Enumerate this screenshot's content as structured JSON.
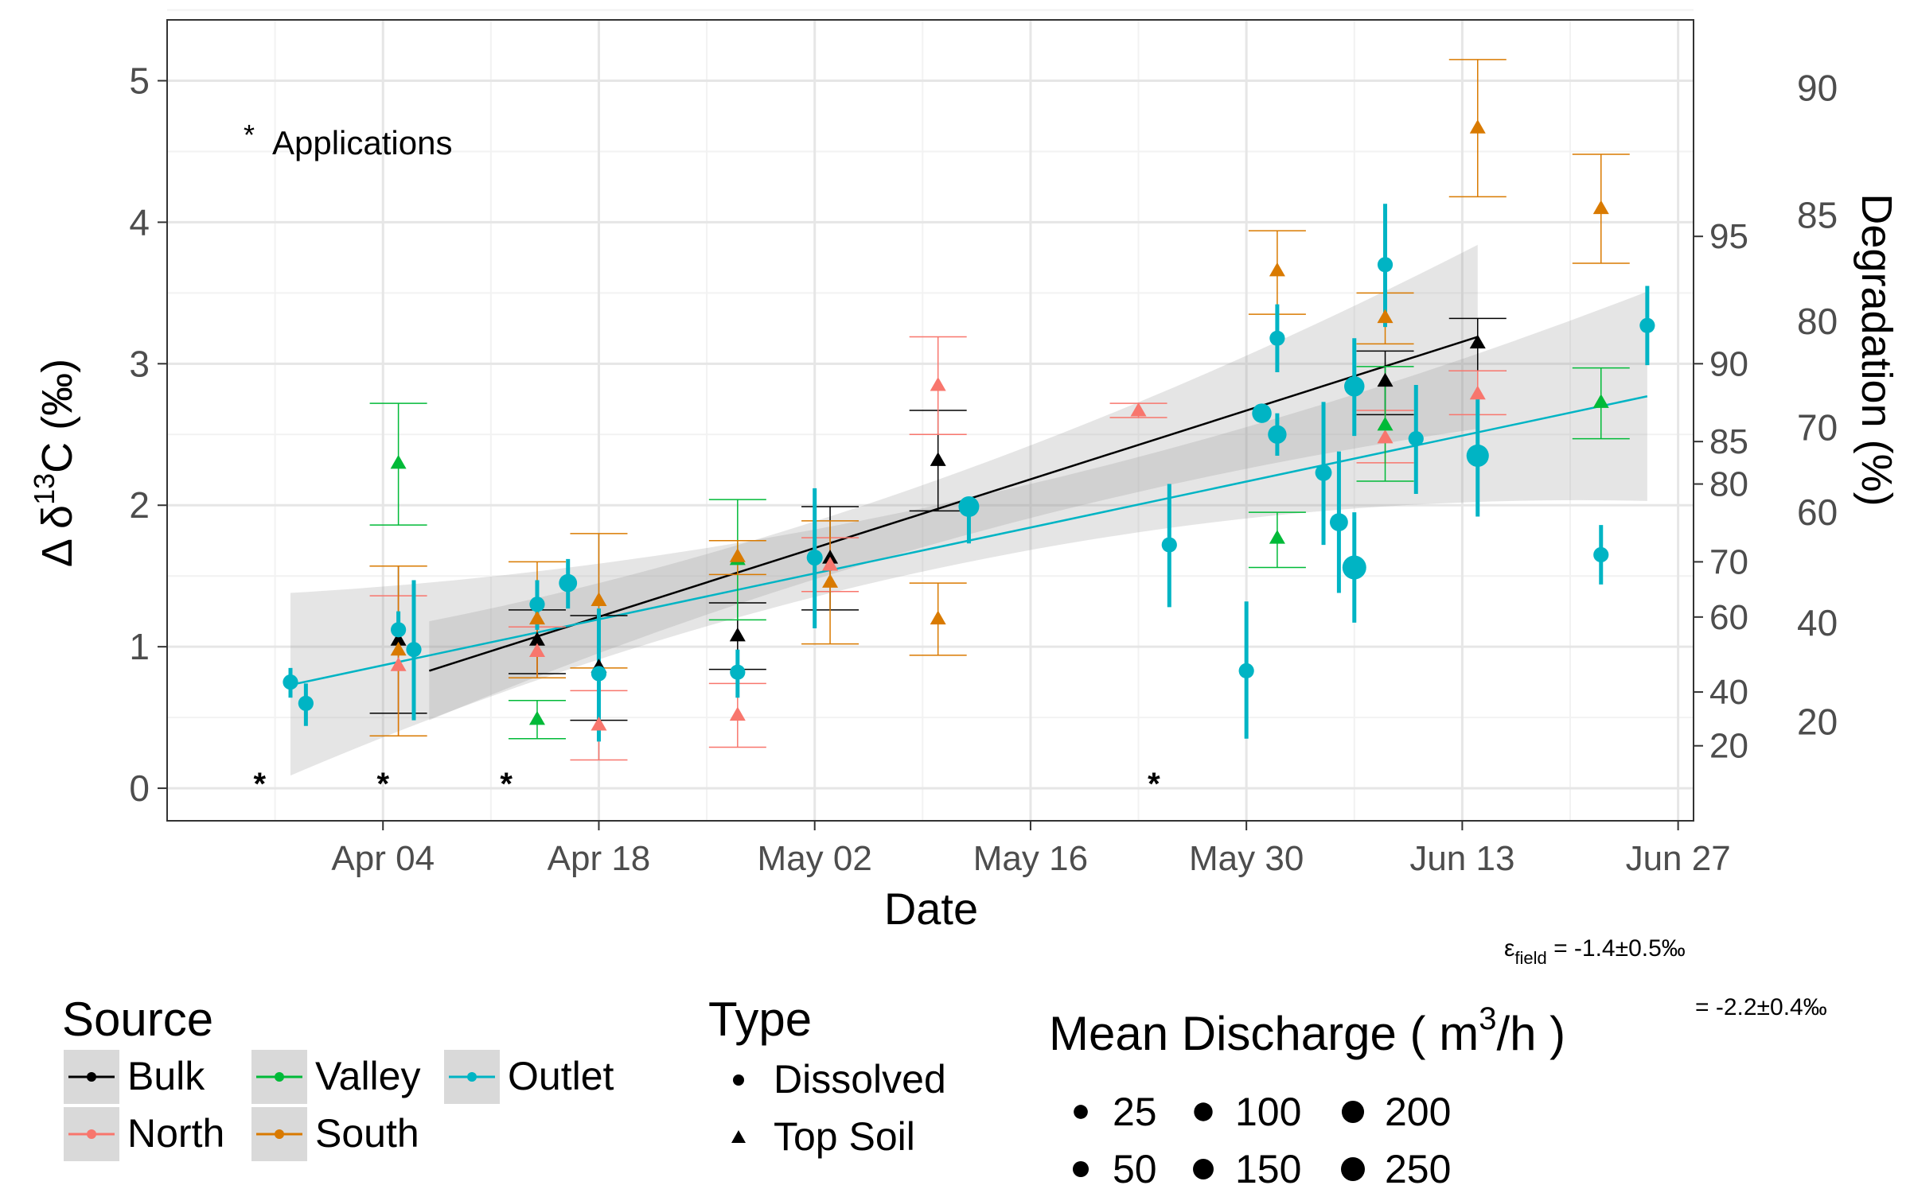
{
  "chart_data": {
    "type": "scatter",
    "xlabel": "Date",
    "ylabel_left_main": "Δ δ",
    "ylabel_left_sup": "13",
    "ylabel_left_end": "C (‰)",
    "ylabel_right": "Degradation (%)",
    "ylim": [
      -0.23,
      5.43
    ],
    "xlim": [
      "2021-03-21",
      "2021-06-28"
    ],
    "grid": true,
    "legend_position": "bottom",
    "x_ticks": [
      {
        "date": "2021-04-04",
        "label": "Apr 04"
      },
      {
        "date": "2021-04-18",
        "label": "Apr 18"
      },
      {
        "date": "2021-05-02",
        "label": "May 02"
      },
      {
        "date": "2021-05-16",
        "label": "May 16"
      },
      {
        "date": "2021-05-30",
        "label": "May 30"
      },
      {
        "date": "2021-06-13",
        "label": "Jun 13"
      },
      {
        "date": "2021-06-27",
        "label": "Jun 27"
      }
    ],
    "y_ticks": [
      0,
      1,
      2,
      3,
      4,
      5
    ],
    "right_axis_inner": [
      {
        "y": 0.3,
        "label": "20"
      },
      {
        "y": 0.68,
        "label": "40"
      },
      {
        "y": 1.21,
        "label": "60"
      },
      {
        "y": 1.6,
        "label": "70"
      },
      {
        "y": 2.15,
        "label": "80"
      },
      {
        "y": 2.45,
        "label": "85"
      },
      {
        "y": 3.0,
        "label": "90"
      },
      {
        "y": 3.9,
        "label": "95"
      }
    ],
    "right_axis_outer": [
      {
        "y": 0.47,
        "label": "20"
      },
      {
        "y": 1.17,
        "label": "40"
      },
      {
        "y": 1.95,
        "label": "60"
      },
      {
        "y": 2.55,
        "label": "70"
      },
      {
        "y": 3.3,
        "label": "80"
      },
      {
        "y": 4.05,
        "label": "85"
      },
      {
        "y": 4.95,
        "label": "90"
      }
    ],
    "annotation": "Applications",
    "applications": [
      "2021-03-27",
      "2021-04-04",
      "2021-04-12",
      "2021-05-24"
    ],
    "series": [
      {
        "name": "Bulk",
        "color": "#000000",
        "points": [
          {
            "x": "2021-04-05",
            "y": 1.05,
            "lo": 0.53,
            "hi": 1.57,
            "type": "Top Soil"
          },
          {
            "x": "2021-04-14",
            "y": 1.05,
            "lo": 0.81,
            "hi": 1.26,
            "type": "Top Soil"
          },
          {
            "x": "2021-04-18",
            "y": 0.86,
            "lo": 0.48,
            "hi": 1.22,
            "type": "Top Soil"
          },
          {
            "x": "2021-04-27",
            "y": 1.08,
            "lo": 0.84,
            "hi": 1.31,
            "type": "Top Soil"
          },
          {
            "x": "2021-05-03",
            "y": 1.63,
            "lo": 1.26,
            "hi": 1.99,
            "type": "Top Soil"
          },
          {
            "x": "2021-05-10",
            "y": 2.32,
            "lo": 1.96,
            "hi": 2.67,
            "type": "Top Soil"
          },
          {
            "x": "2021-06-08",
            "y": 2.88,
            "lo": 2.64,
            "hi": 3.09,
            "type": "Top Soil"
          },
          {
            "x": "2021-06-14",
            "y": 3.15,
            "lo": 2.95,
            "hi": 3.32,
            "type": "Top Soil"
          }
        ]
      },
      {
        "name": "North",
        "color": "#F8766D",
        "points": [
          {
            "x": "2021-04-05",
            "y": 0.87,
            "lo": 0.37,
            "hi": 1.36,
            "type": "Top Soil"
          },
          {
            "x": "2021-04-14",
            "y": 0.97,
            "lo": 0.78,
            "hi": 1.14,
            "type": "Top Soil"
          },
          {
            "x": "2021-04-18",
            "y": 0.45,
            "lo": 0.2,
            "hi": 0.69,
            "type": "Top Soil"
          },
          {
            "x": "2021-04-27",
            "y": 0.52,
            "lo": 0.29,
            "hi": 0.74,
            "type": "Top Soil"
          },
          {
            "x": "2021-05-03",
            "y": 1.58,
            "lo": 1.39,
            "hi": 1.77,
            "type": "Top Soil"
          },
          {
            "x": "2021-05-10",
            "y": 2.85,
            "lo": 2.5,
            "hi": 3.19,
            "type": "Top Soil"
          },
          {
            "x": "2021-05-23",
            "y": 2.67,
            "lo": 2.62,
            "hi": 2.72,
            "type": "Top Soil"
          },
          {
            "x": "2021-06-08",
            "y": 2.48,
            "lo": 2.3,
            "hi": 2.67,
            "type": "Top Soil"
          },
          {
            "x": "2021-06-14",
            "y": 2.79,
            "lo": 2.64,
            "hi": 2.95,
            "type": "Top Soil"
          }
        ]
      },
      {
        "name": "Valley",
        "color": "#00BA38",
        "points": [
          {
            "x": "2021-04-05",
            "y": 2.3,
            "lo": 1.86,
            "hi": 2.72,
            "type": "Top Soil"
          },
          {
            "x": "2021-04-14",
            "y": 0.49,
            "lo": 0.35,
            "hi": 0.62,
            "type": "Top Soil"
          },
          {
            "x": "2021-04-27",
            "y": 1.62,
            "lo": 1.19,
            "hi": 2.04,
            "type": "Top Soil"
          },
          {
            "x": "2021-06-01",
            "y": 1.77,
            "lo": 1.56,
            "hi": 1.95,
            "type": "Top Soil"
          },
          {
            "x": "2021-06-08",
            "y": 2.57,
            "lo": 2.17,
            "hi": 2.98,
            "type": "Top Soil"
          },
          {
            "x": "2021-06-22",
            "y": 2.73,
            "lo": 2.47,
            "hi": 2.97,
            "type": "Top Soil"
          }
        ]
      },
      {
        "name": "South",
        "color": "#D97A00",
        "points": [
          {
            "x": "2021-04-05",
            "y": 0.98,
            "lo": 0.37,
            "hi": 1.57,
            "type": "Top Soil"
          },
          {
            "x": "2021-04-14",
            "y": 1.2,
            "lo": 0.78,
            "hi": 1.6,
            "type": "Top Soil"
          },
          {
            "x": "2021-04-18",
            "y": 1.33,
            "lo": 0.85,
            "hi": 1.8,
            "type": "Top Soil"
          },
          {
            "x": "2021-04-27",
            "y": 1.64,
            "lo": 1.51,
            "hi": 1.75,
            "type": "Top Soil"
          },
          {
            "x": "2021-05-03",
            "y": 1.46,
            "lo": 1.02,
            "hi": 1.89,
            "type": "Top Soil"
          },
          {
            "x": "2021-05-10",
            "y": 1.2,
            "lo": 0.94,
            "hi": 1.45,
            "type": "Top Soil"
          },
          {
            "x": "2021-06-01",
            "y": 3.66,
            "lo": 3.35,
            "hi": 3.94,
            "type": "Top Soil"
          },
          {
            "x": "2021-06-08",
            "y": 3.33,
            "lo": 3.14,
            "hi": 3.5,
            "type": "Top Soil"
          },
          {
            "x": "2021-06-14",
            "y": 4.67,
            "lo": 4.18,
            "hi": 5.15,
            "type": "Top Soil"
          },
          {
            "x": "2021-06-22",
            "y": 4.1,
            "lo": 3.71,
            "hi": 4.48,
            "type": "Top Soil"
          }
        ]
      },
      {
        "name": "Outlet",
        "color": "#00B4C4",
        "points": [
          {
            "x": "2021-03-29",
            "y": 0.75,
            "lo": 0.64,
            "hi": 0.85,
            "type": "Dissolved",
            "discharge": 40
          },
          {
            "x": "2021-03-30",
            "y": 0.6,
            "lo": 0.44,
            "hi": 0.74,
            "type": "Dissolved",
            "discharge": 40
          },
          {
            "x": "2021-04-05",
            "y": 1.12,
            "lo": 0.98,
            "hi": 1.25,
            "type": "Dissolved",
            "discharge": 40
          },
          {
            "x": "2021-04-06",
            "y": 0.98,
            "lo": 0.48,
            "hi": 1.47,
            "type": "Dissolved",
            "discharge": 40
          },
          {
            "x": "2021-04-14",
            "y": 1.3,
            "lo": 1.12,
            "hi": 1.47,
            "type": "Dissolved",
            "discharge": 40
          },
          {
            "x": "2021-04-16",
            "y": 1.45,
            "lo": 1.27,
            "hi": 1.62,
            "type": "Dissolved",
            "discharge": 90
          },
          {
            "x": "2021-04-18",
            "y": 0.81,
            "lo": 0.33,
            "hi": 1.27,
            "type": "Dissolved",
            "discharge": 40
          },
          {
            "x": "2021-04-27",
            "y": 0.82,
            "lo": 0.64,
            "hi": 0.98,
            "type": "Dissolved",
            "discharge": 40
          },
          {
            "x": "2021-05-02",
            "y": 1.63,
            "lo": 1.13,
            "hi": 2.12,
            "type": "Dissolved",
            "discharge": 50
          },
          {
            "x": "2021-05-12",
            "y": 1.99,
            "lo": 1.73,
            "hi": 2.0,
            "type": "Dissolved",
            "discharge": 150
          },
          {
            "x": "2021-05-25",
            "y": 1.72,
            "lo": 1.28,
            "hi": 2.15,
            "type": "Dissolved",
            "discharge": 40
          },
          {
            "x": "2021-05-30",
            "y": 0.83,
            "lo": 0.35,
            "hi": 1.32,
            "type": "Dissolved",
            "discharge": 40
          },
          {
            "x": "2021-05-31",
            "y": 2.65,
            "lo": 2.64,
            "hi": 2.66,
            "type": "Dissolved",
            "discharge": 120
          },
          {
            "x": "2021-06-01",
            "y": 2.5,
            "lo": 2.35,
            "hi": 2.65,
            "type": "Dissolved",
            "discharge": 100
          },
          {
            "x": "2021-06-01",
            "y": 3.18,
            "lo": 2.94,
            "hi": 3.42,
            "type": "Dissolved",
            "discharge": 40
          },
          {
            "x": "2021-06-04",
            "y": 2.23,
            "lo": 1.72,
            "hi": 2.73,
            "type": "Dissolved",
            "discharge": 60
          },
          {
            "x": "2021-06-05",
            "y": 1.88,
            "lo": 1.38,
            "hi": 2.38,
            "type": "Dissolved",
            "discharge": 90
          },
          {
            "x": "2021-06-06",
            "y": 2.84,
            "lo": 2.49,
            "hi": 3.18,
            "type": "Dissolved",
            "discharge": 140
          },
          {
            "x": "2021-06-06",
            "y": 1.56,
            "lo": 1.17,
            "hi": 1.95,
            "type": "Dissolved",
            "discharge": 250
          },
          {
            "x": "2021-06-08",
            "y": 3.7,
            "lo": 3.26,
            "hi": 4.13,
            "type": "Dissolved",
            "discharge": 40
          },
          {
            "x": "2021-06-10",
            "y": 2.47,
            "lo": 2.08,
            "hi": 2.85,
            "type": "Dissolved",
            "discharge": 40
          },
          {
            "x": "2021-06-14",
            "y": 2.35,
            "lo": 1.92,
            "hi": 2.78,
            "type": "Dissolved",
            "discharge": 200
          },
          {
            "x": "2021-06-22",
            "y": 1.65,
            "lo": 1.44,
            "hi": 1.86,
            "type": "Dissolved",
            "discharge": 40
          },
          {
            "x": "2021-06-25",
            "y": 3.27,
            "lo": 2.99,
            "hi": 3.55,
            "type": "Dissolved",
            "discharge": 40
          }
        ]
      }
    ],
    "fits": [
      {
        "name": "Bulk",
        "color": "#000000",
        "x0": "2021-04-07",
        "y0": 0.83,
        "x1": "2021-06-14",
        "y1": 3.19,
        "band": [
          {
            "x": "2021-04-07",
            "lo": 0.48,
            "hi": 1.18
          },
          {
            "x": "2021-05-10",
            "lo": 1.75,
            "hi": 2.2
          },
          {
            "x": "2021-06-14",
            "lo": 2.54,
            "hi": 3.84
          }
        ]
      },
      {
        "name": "Outlet",
        "color": "#00B4C4",
        "x0": "2021-03-29",
        "y0": 0.73,
        "x1": "2021-06-25",
        "y1": 2.77,
        "band": [
          {
            "x": "2021-03-29",
            "lo": 0.09,
            "hi": 1.38
          },
          {
            "x": "2021-05-12",
            "lo": 1.6,
            "hi": 2.05
          },
          {
            "x": "2021-06-25",
            "lo": 2.03,
            "hi": 3.51
          }
        ]
      }
    ],
    "epsilon_prefix": "ε",
    "epsilon_sub": "field",
    "epsilon_value": " = -1.4±0.5‰",
    "epsilon_value2": " = -2.2±0.4‰"
  },
  "legend": {
    "source_title": "Source",
    "source_items": [
      {
        "label": "Bulk",
        "color": "#000000"
      },
      {
        "label": "North",
        "color": "#F8766D"
      },
      {
        "label": "Valley",
        "color": "#00BA38"
      },
      {
        "label": "South",
        "color": "#D97A00"
      },
      {
        "label": "Outlet",
        "color": "#00B4C4"
      }
    ],
    "type_title": "Type",
    "type_items": [
      {
        "label": "Dissolved",
        "shape": "circle"
      },
      {
        "label": "Top Soil",
        "shape": "triangle"
      }
    ],
    "discharge_title_pre": "Mean Discharge ( m",
    "discharge_title_sup": "3",
    "discharge_title_post": "/h )",
    "discharge_items": [
      {
        "label": "25",
        "value": 25
      },
      {
        "label": "50",
        "value": 50
      },
      {
        "label": "100",
        "value": 100
      },
      {
        "label": "150",
        "value": 150
      },
      {
        "label": "200",
        "value": 200
      },
      {
        "label": "250",
        "value": 250
      }
    ]
  }
}
